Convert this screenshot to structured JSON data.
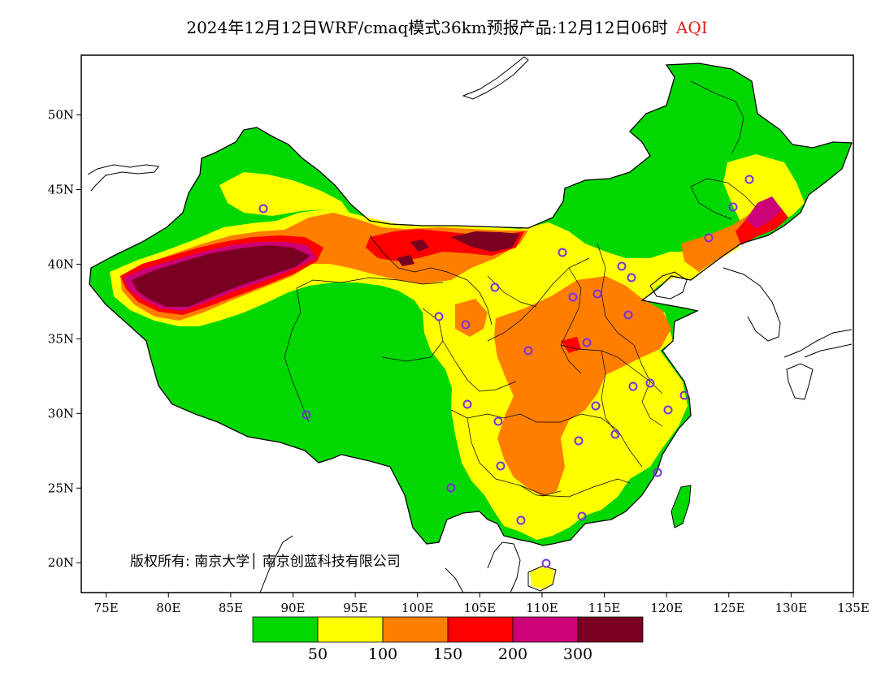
{
  "title": {
    "main": "2024年12月12日WRF/cmaq模式36km预报产品:12月12日06时",
    "variable": "AQI"
  },
  "map": {
    "lon_range": [
      73,
      135
    ],
    "lat_range": [
      18,
      54
    ],
    "lon_ticks": [
      "75E",
      "80E",
      "85E",
      "90E",
      "95E",
      "100E",
      "105E",
      "110E",
      "115E",
      "120E",
      "125E",
      "130E",
      "135E"
    ],
    "lat_ticks": [
      "50N",
      "45N",
      "40N",
      "35N",
      "30N",
      "25N",
      "20N"
    ],
    "copyright": "版权所有: 南京大学│ 南京创蓝科技有限公司"
  },
  "legend": {
    "colors": [
      "#00d800",
      "#ffff00",
      "#ff7e00",
      "#ff0000",
      "#cc0077",
      "#7a0021"
    ],
    "labels": [
      "50",
      "100",
      "150",
      "200",
      "300"
    ]
  },
  "colors": {
    "good": "#00d800",
    "moderate": "#ffff00",
    "sensitive": "#ff7e00",
    "unhealthy": "#ff0000",
    "very_unhealthy": "#cc0077",
    "hazardous": "#7a0021",
    "station_marker": "#7a30e0"
  }
}
